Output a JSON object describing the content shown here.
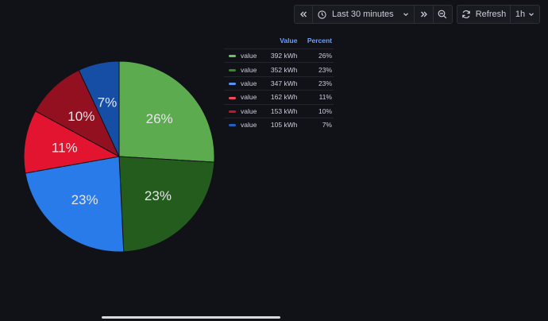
{
  "toolbar": {
    "time_range": "Last 30 minutes",
    "refresh_label": "Refresh",
    "refresh_interval": "1h"
  },
  "legend": {
    "headers": {
      "value": "Value",
      "percent": "Percent"
    },
    "rows": [
      {
        "name": "value",
        "value": "392 kWh",
        "percent": "26%",
        "color": "#73bf69"
      },
      {
        "name": "value",
        "value": "352 kWh",
        "percent": "23%",
        "color": "#37872d"
      },
      {
        "name": "value",
        "value": "347 kWh",
        "percent": "23%",
        "color": "#5794f2"
      },
      {
        "name": "value",
        "value": "162 kWh",
        "percent": "11%",
        "color": "#f2495c"
      },
      {
        "name": "value",
        "value": "153 kWh",
        "percent": "10%",
        "color": "#c4162a"
      },
      {
        "name": "value",
        "value": "105 kWh",
        "percent": "7%",
        "color": "#1f60c4"
      }
    ]
  },
  "chart_data": {
    "type": "pie",
    "unit": "kWh",
    "slices": [
      {
        "label": "value",
        "value": 392,
        "percent_label": "26%",
        "color": "#5cac4f"
      },
      {
        "label": "value",
        "value": 352,
        "percent_label": "23%",
        "color": "#245c1e"
      },
      {
        "label": "value",
        "value": 347,
        "percent_label": "23%",
        "color": "#2a7bea"
      },
      {
        "label": "value",
        "value": 162,
        "percent_label": "11%",
        "color": "#e2142f"
      },
      {
        "label": "value",
        "value": 153,
        "percent_label": "10%",
        "color": "#921020"
      },
      {
        "label": "value",
        "value": 105,
        "percent_label": "7%",
        "color": "#164ea6"
      }
    ]
  }
}
